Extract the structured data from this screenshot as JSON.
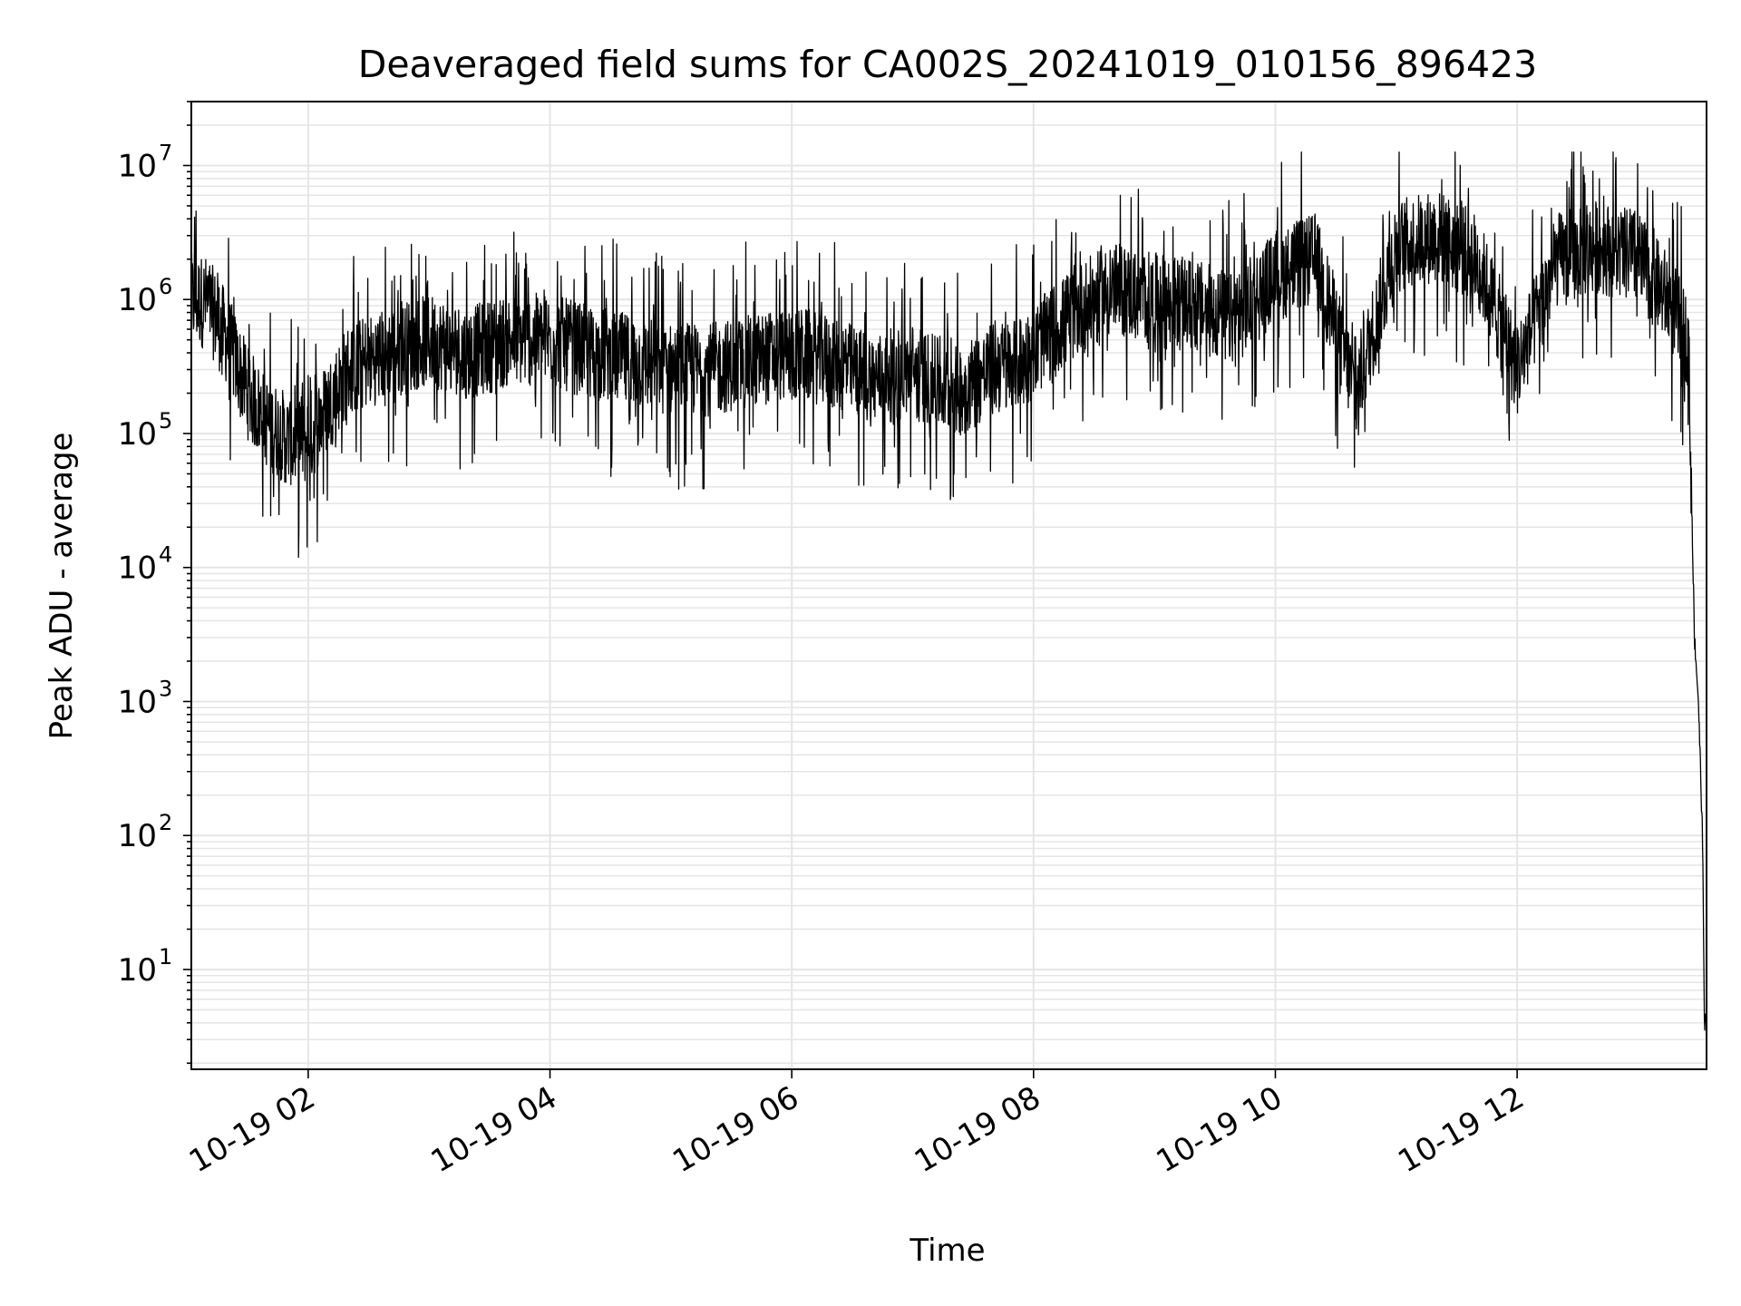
{
  "chart_data": {
    "type": "line",
    "title": "Deaveraged field sums for CA002S_20241019_010156_896423",
    "xlabel": "Time",
    "ylabel": "Peak ADU - average",
    "yscale": "log",
    "ylim": [
      1.8,
      30000000
    ],
    "xlim": [
      "2024-10-19 01:02",
      "2024-10-19 13:34"
    ],
    "x_ticks": [
      {
        "time": "2024-10-19 02:00",
        "label": "10-19 02"
      },
      {
        "time": "2024-10-19 04:00",
        "label": "10-19 04"
      },
      {
        "time": "2024-10-19 06:00",
        "label": "10-19 06"
      },
      {
        "time": "2024-10-19 08:00",
        "label": "10-19 08"
      },
      {
        "time": "2024-10-19 10:00",
        "label": "10-19 10"
      },
      {
        "time": "2024-10-19 12:00",
        "label": "10-19 12"
      }
    ],
    "y_ticks": [
      {
        "value": 10,
        "base": "10",
        "exp": "1"
      },
      {
        "value": 100,
        "base": "10",
        "exp": "2"
      },
      {
        "value": 1000,
        "base": "10",
        "exp": "3"
      },
      {
        "value": 10000,
        "base": "10",
        "exp": "4"
      },
      {
        "value": 100000,
        "base": "10",
        "exp": "5"
      },
      {
        "value": 1000000,
        "base": "10",
        "exp": "6"
      },
      {
        "value": 10000000,
        "base": "10",
        "exp": "7"
      }
    ],
    "grid": true,
    "line_color": "#000000",
    "grid_color": "#e5e5e5",
    "series": [
      {
        "x": [
          "2024-10-19 01:02",
          "2024-10-19 01:10",
          "2024-10-19 01:20",
          "2024-10-19 01:30",
          "2024-10-19 01:40",
          "2024-10-19 01:50",
          "2024-10-19 02:00",
          "2024-10-19 02:20",
          "2024-10-19 02:40",
          "2024-10-19 03:00",
          "2024-10-19 03:20",
          "2024-10-19 03:40",
          "2024-10-19 04:00",
          "2024-10-19 04:20",
          "2024-10-19 04:40",
          "2024-10-19 05:00",
          "2024-10-19 05:20",
          "2024-10-19 05:40",
          "2024-10-19 06:00",
          "2024-10-19 06:20",
          "2024-10-19 06:40",
          "2024-10-19 07:00",
          "2024-10-19 07:20",
          "2024-10-19 07:40",
          "2024-10-19 07:55",
          "2024-10-19 08:20",
          "2024-10-19 08:40",
          "2024-10-19 09:00",
          "2024-10-19 09:20",
          "2024-10-19 09:40",
          "2024-10-19 10:00",
          "2024-10-19 10:20",
          "2024-10-19 10:40",
          "2024-10-19 11:00",
          "2024-10-19 11:20",
          "2024-10-19 11:40",
          "2024-10-19 12:00",
          "2024-10-19 12:20",
          "2024-10-19 12:40",
          "2024-10-19 13:00",
          "2024-10-19 13:15",
          "2024-10-19 13:22",
          "2024-10-19 13:25",
          "2024-10-19 13:28",
          "2024-10-19 13:30",
          "2024-10-19 13:32",
          "2024-10-19 13:33"
        ],
        "y": [
          1000000,
          950000,
          500000,
          200000,
          120000,
          90000,
          90000,
          300000,
          400000,
          500000,
          400000,
          500000,
          500000,
          400000,
          350000,
          300000,
          300000,
          350000,
          400000,
          350000,
          250000,
          300000,
          200000,
          300000,
          350000,
          800000,
          1200000,
          1000000,
          900000,
          700000,
          1500000,
          2000000,
          200000,
          2500000,
          3000000,
          2000000,
          300000,
          2000000,
          2500000,
          2000000,
          1000000,
          600000,
          500000,
          3000,
          1000,
          100,
          4
        ]
      }
    ]
  }
}
